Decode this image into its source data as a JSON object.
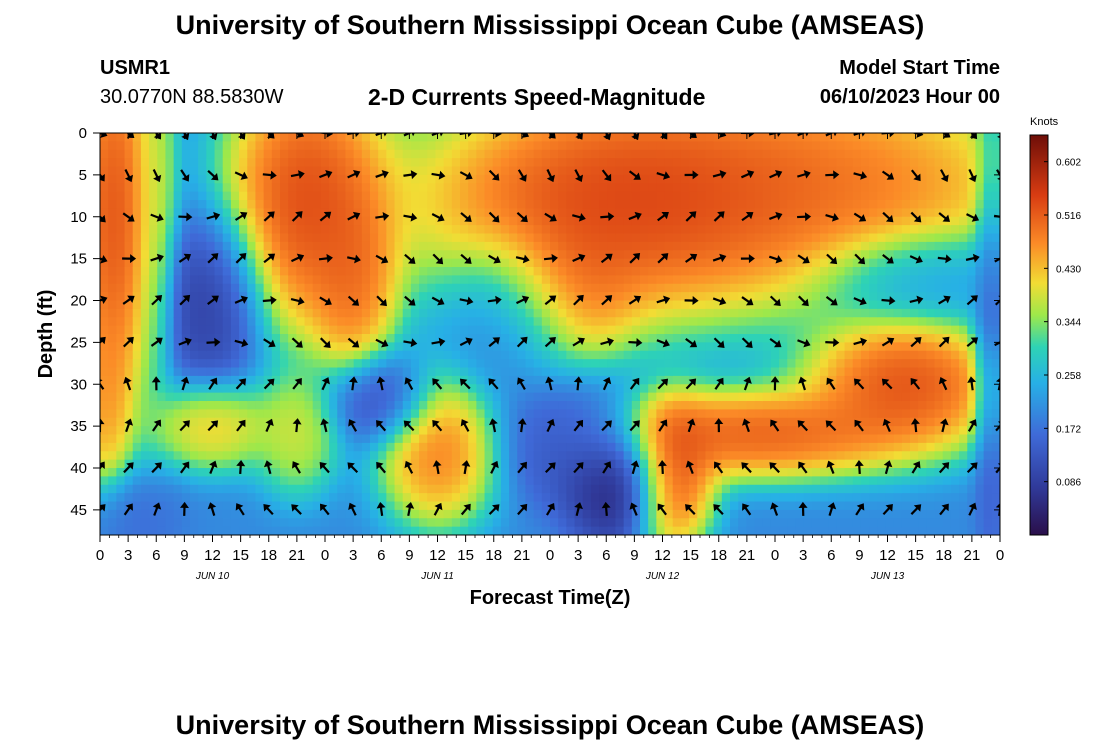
{
  "header": {
    "title": "University of Southern Mississippi Ocean Cube (AMSEAS)",
    "station": "USMR1",
    "coords": "30.0770N  88.5830W",
    "subtitle": "2-D Currents Speed-Magnitude",
    "model_start_label": "Model Start Time",
    "model_start_value": "06/10/2023 Hour 00"
  },
  "footer": {
    "title": "University of Southern Mississippi Ocean Cube (AMSEAS)"
  },
  "chart_data": {
    "type": "heatmap",
    "title": "2-D Currents Speed-Magnitude",
    "xlabel": "Forecast Time(Z)",
    "ylabel": "Depth (ft)",
    "x_range_hours": [
      0,
      96
    ],
    "y_range_ft": [
      0,
      48
    ],
    "x_ticks_labels": [
      "0",
      "3",
      "6",
      "9",
      "12",
      "15",
      "18",
      "21",
      "0",
      "3",
      "6",
      "9",
      "12",
      "15",
      "18",
      "21",
      "0",
      "3",
      "6",
      "9",
      "12",
      "15",
      "18",
      "21",
      "0",
      "3",
      "6",
      "9",
      "12",
      "15",
      "18",
      "21",
      "0"
    ],
    "x_ticks_hours": [
      0,
      3,
      6,
      9,
      12,
      15,
      18,
      21,
      24,
      27,
      30,
      33,
      36,
      39,
      42,
      45,
      48,
      51,
      54,
      57,
      60,
      63,
      66,
      69,
      72,
      75,
      78,
      81,
      84,
      87,
      90,
      93,
      96
    ],
    "day_labels": [
      {
        "text": "JUN 10",
        "hour": 12
      },
      {
        "text": "JUN 11",
        "hour": 36
      },
      {
        "text": "JUN 12",
        "hour": 60
      },
      {
        "text": "JUN 13",
        "hour": 84
      }
    ],
    "y_ticks": [
      0,
      5,
      10,
      15,
      20,
      25,
      30,
      35,
      40,
      45
    ],
    "colorbar": {
      "label": "Knots",
      "min": 0.0,
      "max": 0.645,
      "tick_values": [
        0.086,
        0.172,
        0.258,
        0.344,
        0.43,
        0.516,
        0.602
      ],
      "tick_labels": [
        "0.086",
        "0.172",
        "0.258",
        "0.344",
        "0.430",
        "0.516",
        "0.602"
      ]
    },
    "speed_blobs_knots": [
      {
        "hour": 1.5,
        "depth": 10,
        "speed": 0.62,
        "sh": 2.5,
        "sd": 14
      },
      {
        "hour": 0.5,
        "depth": 32,
        "speed": 0.5,
        "sh": 1.5,
        "sd": 6
      },
      {
        "hour": 6,
        "depth": 8,
        "speed": 0.4,
        "sh": 1.2,
        "sd": 12
      },
      {
        "hour": 22,
        "depth": 8,
        "speed": 0.63,
        "sh": 5,
        "sd": 9
      },
      {
        "hour": 27,
        "depth": 18,
        "speed": 0.55,
        "sh": 2.5,
        "sd": 6
      },
      {
        "hour": 56,
        "depth": 8,
        "speed": 0.64,
        "sh": 13,
        "sd": 8
      },
      {
        "hour": 50,
        "depth": 18,
        "speed": 0.55,
        "sh": 4,
        "sd": 5
      },
      {
        "hour": 78,
        "depth": 6,
        "speed": 0.56,
        "sh": 13,
        "sd": 7
      },
      {
        "hour": 86,
        "depth": 30,
        "speed": 0.62,
        "sh": 6,
        "sd": 4.5
      },
      {
        "hour": 70,
        "depth": 36,
        "speed": 0.6,
        "sh": 9,
        "sd": 3
      },
      {
        "hour": 61,
        "depth": 41,
        "speed": 0.62,
        "sh": 2.5,
        "sd": 5
      },
      {
        "hour": 36,
        "depth": 38,
        "speed": 0.56,
        "sh": 3.5,
        "sd": 5
      },
      {
        "hour": 12,
        "depth": 35,
        "speed": 0.48,
        "sh": 3.5,
        "sd": 3
      },
      {
        "hour": 21,
        "depth": 36,
        "speed": 0.43,
        "sh": 2.5,
        "sd": 4
      },
      {
        "hour": 3,
        "depth": 46,
        "speed": 0.15,
        "sh": 3,
        "sd": 3
      },
      {
        "hour": 55,
        "depth": 42,
        "speed": 0.0,
        "sh": 3,
        "sd": 4
      },
      {
        "hour": 50,
        "depth": 37,
        "speed": 0.1,
        "sh": 4,
        "sd": 4
      },
      {
        "hour": 30,
        "depth": 32,
        "speed": 0.08,
        "sh": 3,
        "sd": 3
      },
      {
        "hour": 12,
        "depth": 20,
        "speed": 0.05,
        "sh": 3,
        "sd": 6
      },
      {
        "hour": 88,
        "depth": 17,
        "speed": 0.2,
        "sh": 6,
        "sd": 3
      },
      {
        "hour": 95,
        "depth": 25,
        "speed": 0.12,
        "sh": 1,
        "sd": 15
      },
      {
        "hour": 44,
        "depth": 22,
        "speed": 0.18,
        "sh": 4,
        "sd": 5
      }
    ],
    "arrow_hours": [
      0,
      3,
      6,
      9,
      12,
      15,
      18,
      21,
      24,
      27,
      30,
      33,
      36,
      39,
      42,
      45,
      48,
      51,
      54,
      57,
      60,
      63,
      66,
      69,
      72,
      75,
      78,
      81,
      84,
      87,
      90,
      93,
      96
    ],
    "arrow_depths_ft": [
      0,
      5,
      10,
      15,
      20,
      25,
      30,
      35,
      40,
      45
    ]
  }
}
